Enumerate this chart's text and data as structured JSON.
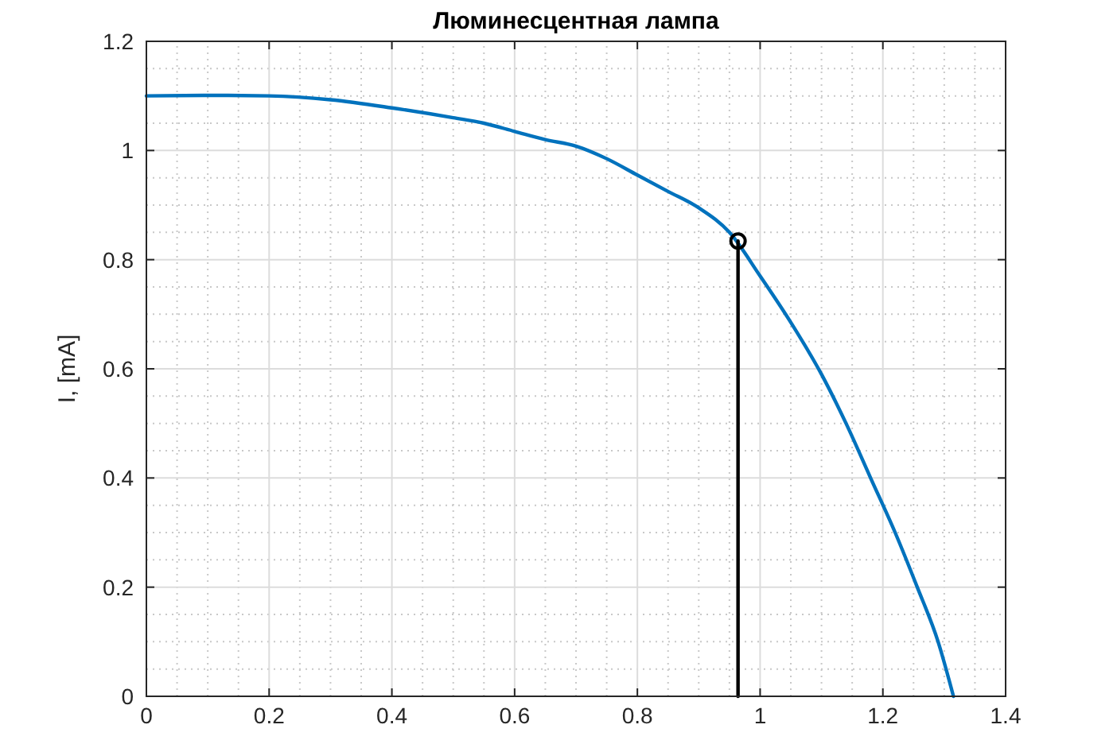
{
  "chart_data": {
    "type": "line",
    "title": "Люминесцентная лампа",
    "ylabel": "I, [mA]",
    "xlim": [
      0,
      1.4
    ],
    "xticks": [
      0,
      0.2,
      0.4,
      0.6,
      0.8,
      1,
      1.2,
      1.4
    ],
    "ylim": [
      0,
      1.2
    ],
    "yticks": [
      0,
      0.2,
      0.4,
      0.6,
      0.8,
      1,
      1.2
    ],
    "grid": true,
    "series": [
      {
        "color": "#0072bd",
        "x": [
          0,
          0.1,
          0.2,
          0.3,
          0.4,
          0.5,
          0.55,
          0.6,
          0.65,
          0.7,
          0.75,
          0.8,
          0.85,
          0.9,
          0.95,
          1.0,
          1.05,
          1.1,
          1.14,
          1.18,
          1.22,
          1.256,
          1.29,
          1.315
        ],
        "values": [
          1.1,
          1.101,
          1.1,
          1.093,
          1.078,
          1.06,
          1.05,
          1.035,
          1.02,
          1.008,
          0.985,
          0.955,
          0.925,
          0.895,
          0.85,
          0.77,
          0.685,
          0.59,
          0.5,
          0.4,
          0.3,
          0.2,
          0.1,
          0
        ]
      },
      {
        "type": "line",
        "color": "#000000",
        "x": [
          0.964,
          0.964
        ],
        "values": [
          0,
          0.834
        ]
      },
      {
        "type": "scatter",
        "color": "#000000",
        "marker": "circle",
        "x": [
          0.964
        ],
        "values": [
          0.834
        ]
      }
    ]
  }
}
